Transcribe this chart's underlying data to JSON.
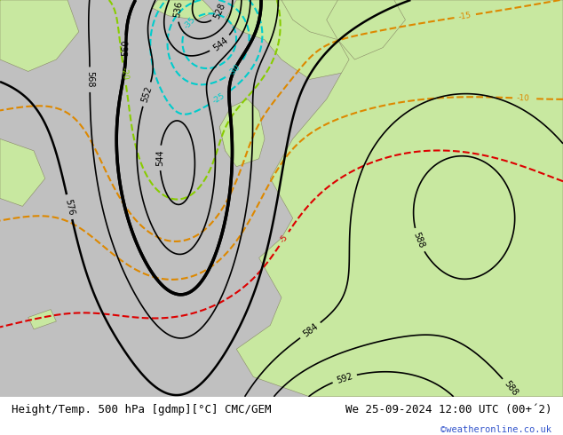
{
  "title_left": "Height/Temp. 500 hPa [gdmp][°C] CMC/GEM",
  "title_right": "We 25-09-2024 12:00 UTC (00+´2)",
  "credit": "©weatheronline.co.uk",
  "figsize": [
    6.34,
    4.9
  ],
  "dpi": 100,
  "title_fontsize": 9,
  "credit_fontsize": 7.5,
  "title_color": "#000000",
  "credit_color": "#3355cc",
  "bg_sea": "#c8c8c8",
  "bg_land": "#c8e8a0",
  "h_levels": [
    528,
    536,
    544,
    552,
    560,
    568,
    576,
    584,
    588,
    592
  ],
  "h_bold": [
    560
  ],
  "t_cyan_levels": [
    -35,
    -30,
    -25
  ],
  "t_green_levels": [
    -20
  ],
  "t_orange_levels": [
    -15,
    -10
  ],
  "t_red_levels": [
    -5
  ],
  "color_cyan": "#00cccc",
  "color_green": "#88cc00",
  "color_orange": "#dd8800",
  "color_red": "#dd0000"
}
